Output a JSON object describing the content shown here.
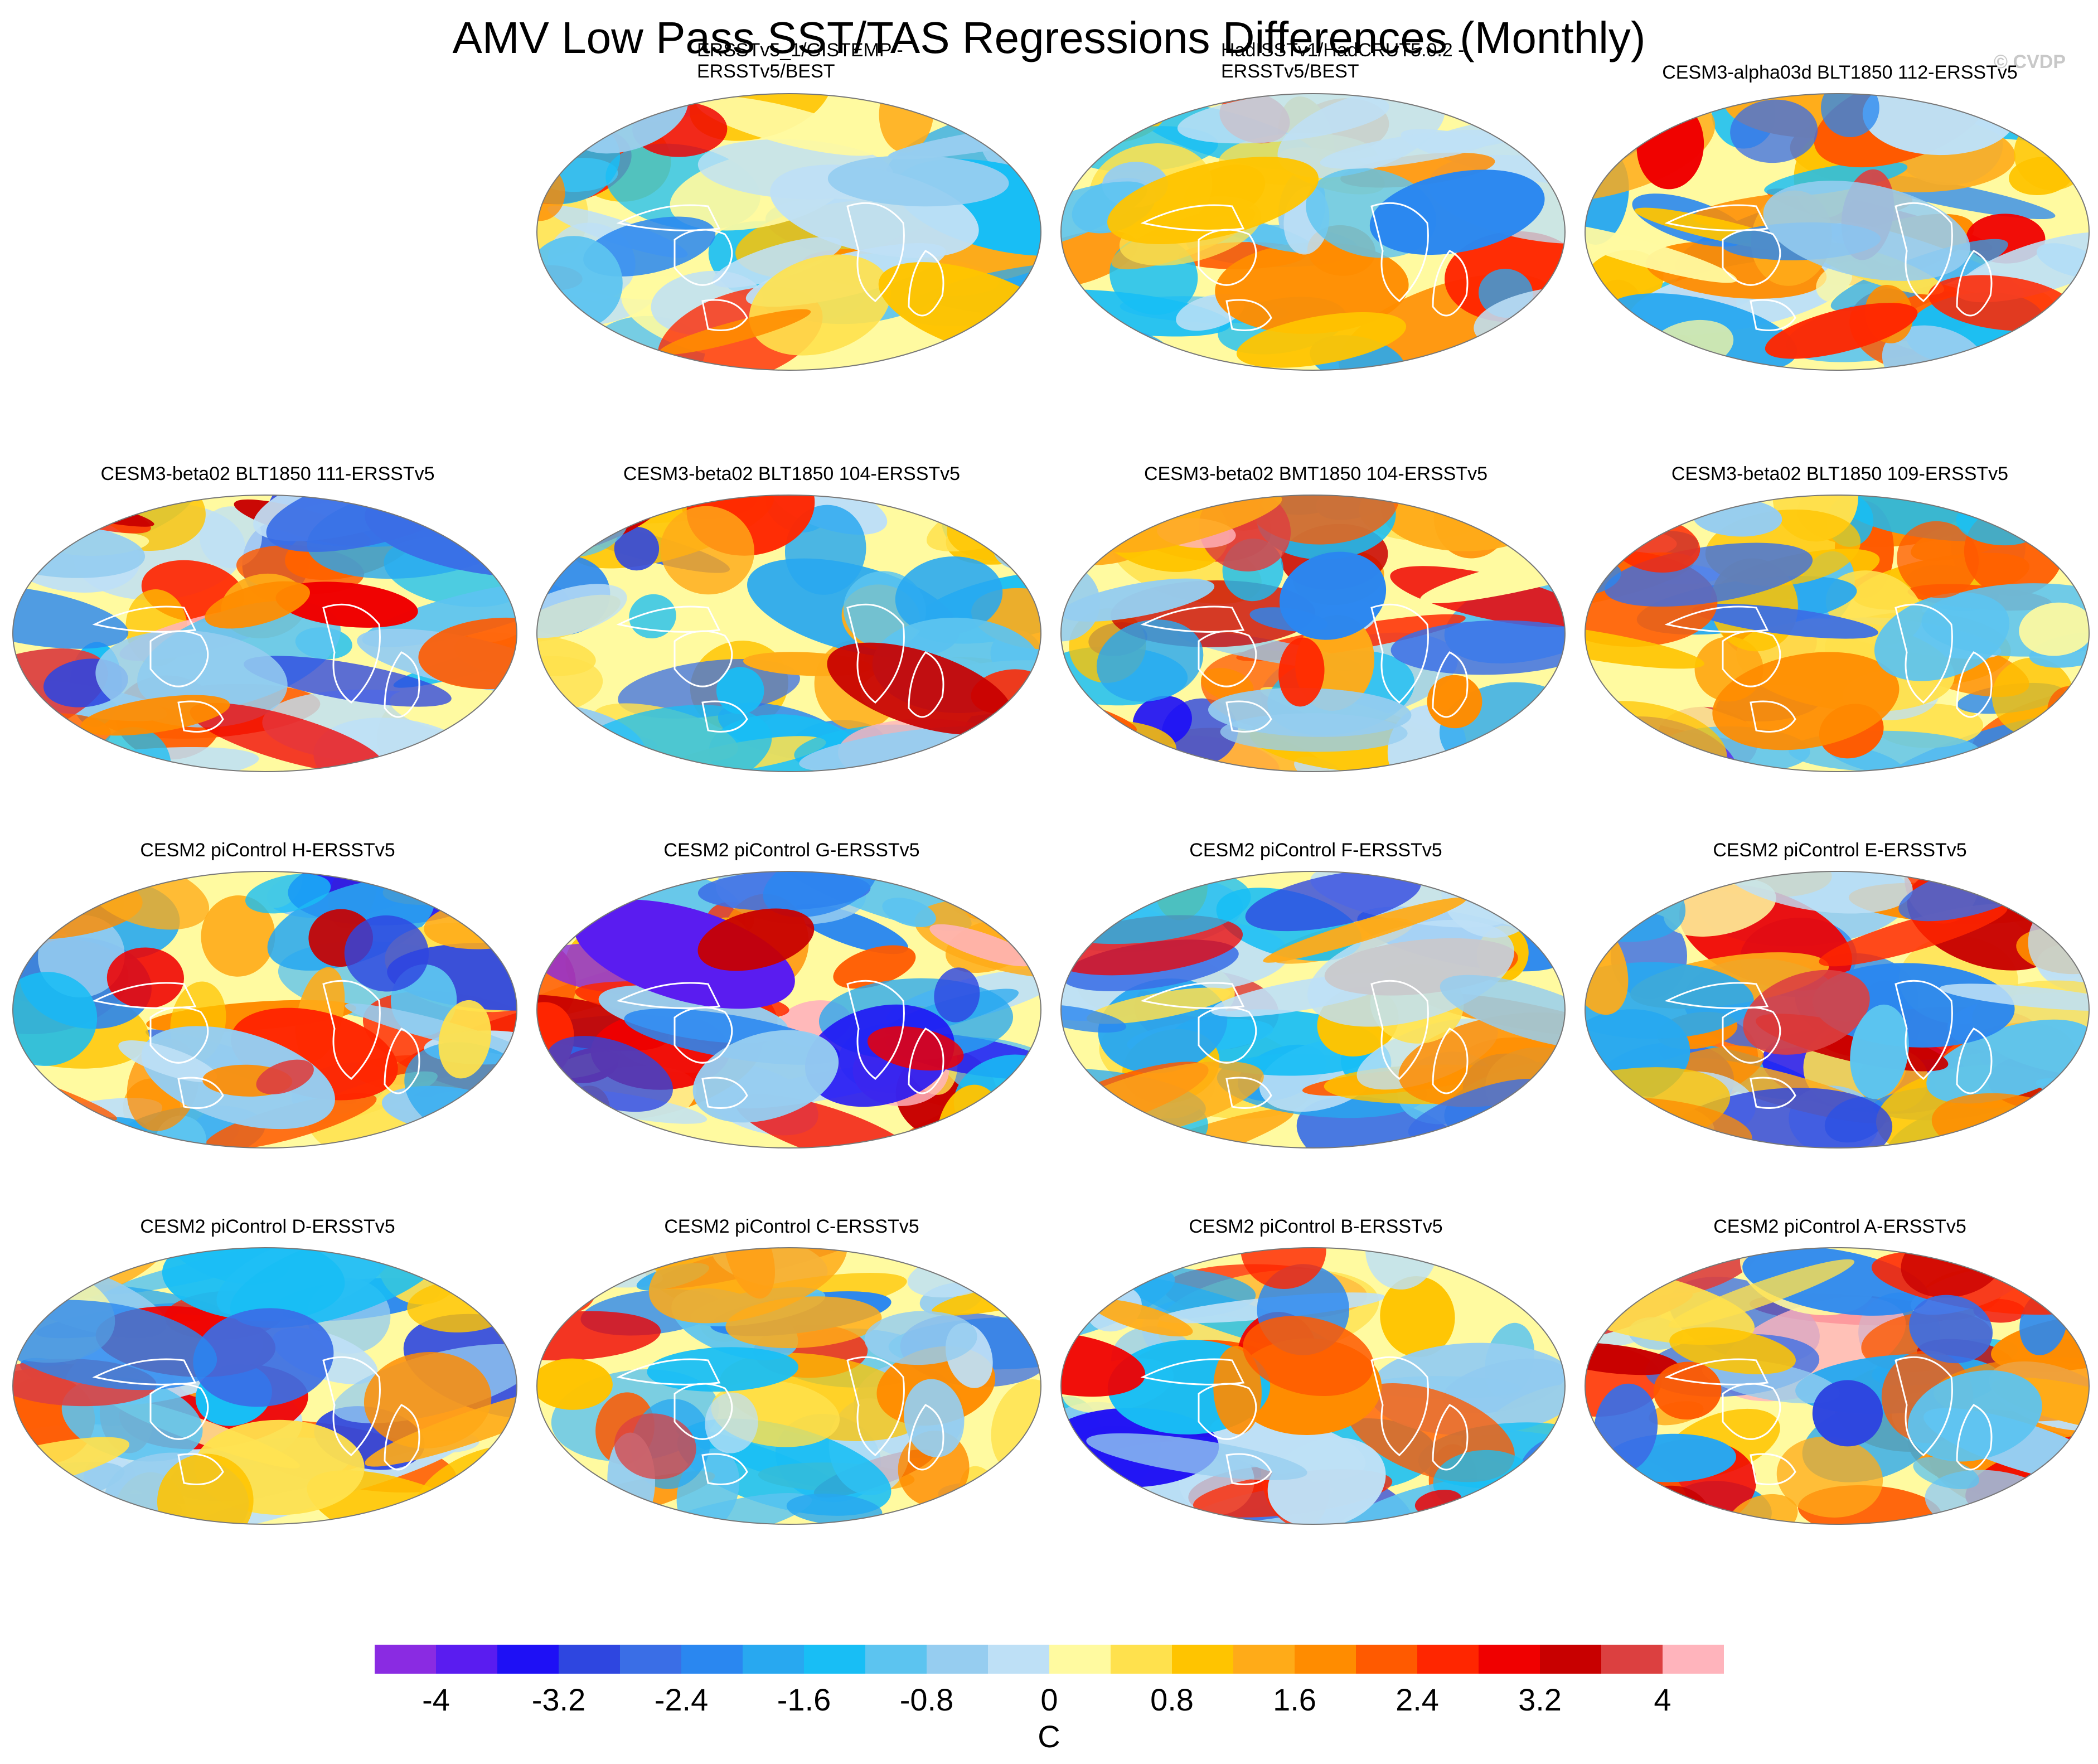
{
  "title": "AMV Low Pass SST/TAS Regressions Differences (Monthly)",
  "copyright": "© CVDP",
  "panels": [
    {
      "title": "ERSSTv5_1/GISTEMP -",
      "subtitle": "ERSSTv5/BEST",
      "seed": 3,
      "amp": 0.55
    },
    {
      "title": "HadISSTv1/HadCRUT5.0.2 -",
      "subtitle": "ERSSTv5/BEST",
      "seed": 7,
      "amp": 0.5
    },
    {
      "title": "CESM3-alpha03d BLT1850 112-ERSSTv5",
      "subtitle": "",
      "seed": 11,
      "amp": 1.0
    },
    {
      "title": "CESM3-beta02 BLT1850 111-ERSSTv5",
      "subtitle": "",
      "seed": 13,
      "amp": 1.0
    },
    {
      "title": "CESM3-beta02 BLT1850 104-ERSSTv5",
      "subtitle": "",
      "seed": 17,
      "amp": 1.0
    },
    {
      "title": "CESM3-beta02 BMT1850 104-ERSSTv5",
      "subtitle": "",
      "seed": 19,
      "amp": 1.0
    },
    {
      "title": "CESM3-beta02 BLT1850 109-ERSSTv5",
      "subtitle": "",
      "seed": 23,
      "amp": 1.0
    },
    {
      "title": "CESM2 piControl H-ERSSTv5",
      "subtitle": "",
      "seed": 29,
      "amp": 1.0
    },
    {
      "title": "CESM2 piControl G-ERSSTv5",
      "subtitle": "",
      "seed": 31,
      "amp": 1.2
    },
    {
      "title": "CESM2 piControl F-ERSSTv5",
      "subtitle": "",
      "seed": 37,
      "amp": 0.9
    },
    {
      "title": "CESM2 piControl E-ERSSTv5",
      "subtitle": "",
      "seed": 41,
      "amp": 1.1
    },
    {
      "title": "CESM2 piControl D-ERSSTv5",
      "subtitle": "",
      "seed": 43,
      "amp": 0.9
    },
    {
      "title": "CESM2 piControl C-ERSSTv5",
      "subtitle": "",
      "seed": 47,
      "amp": 0.9
    },
    {
      "title": "CESM2 piControl B-ERSSTv5",
      "subtitle": "",
      "seed": 53,
      "amp": 1.0
    },
    {
      "title": "CESM2 piControl A-ERSSTv5",
      "subtitle": "",
      "seed": 59,
      "amp": 1.2
    }
  ],
  "colorbar": {
    "colors": [
      "#8a2be2",
      "#5a1cf0",
      "#1e10f5",
      "#2e46e0",
      "#3a6ee6",
      "#2a87f0",
      "#28a8f0",
      "#18bef5",
      "#5cc4f0",
      "#96cdf0",
      "#bee0f6",
      "#fffaa0",
      "#ffe14d",
      "#ffc400",
      "#ffab18",
      "#ff8c00",
      "#ff5a00",
      "#ff2600",
      "#f00000",
      "#c80000",
      "#dc4040",
      "#ffb4bc"
    ],
    "tick_labels": [
      "-4",
      "-3.2",
      "-2.4",
      "-1.6",
      "-0.8",
      "0",
      "0.8",
      "1.6",
      "2.4",
      "3.2",
      "4"
    ],
    "tick_values": [
      -4,
      -3.2,
      -2.4,
      -1.6,
      -0.8,
      0,
      0.8,
      1.6,
      2.4,
      3.2,
      4
    ],
    "units": "C"
  }
}
